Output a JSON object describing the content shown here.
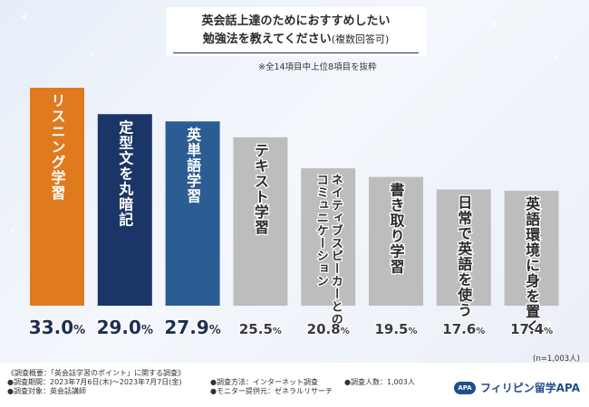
{
  "title_line1": "英会話上達のためにおすすめしたい",
  "title_line2": "勉強法を教えてください",
  "title_line2_suffix": "(複数回答可)",
  "subnote": "※全14項目中上位8項目を抜粋",
  "n_note": "(n=1,003人)",
  "colors": {
    "orange": "#e07a1f",
    "navy": "#1a3566",
    "blue": "#2b5c93",
    "gray": "#bdbdbd",
    "value_text": "#1d2f52"
  },
  "chart_data": {
    "type": "bar",
    "title": "英会話上達のためにおすすめしたい勉強法を教えてください(複数回答可)",
    "categories": [
      "リスニング学習",
      "定型文を丸暗記",
      "英単語学習",
      "テキスト学習",
      "ネイティブスピーカーとのコミュニケーション",
      "書き取り学習",
      "日常で英語を使う",
      "英語環境に身を置く"
    ],
    "bar_labels": [
      [
        "リスニング学習"
      ],
      [
        "定型文を丸暗記"
      ],
      [
        "英単語学習"
      ],
      [
        "テキスト学習"
      ],
      [
        "ネイティブスピーカーとの",
        "コミュニケーション"
      ],
      [
        "書き取り学習"
      ],
      [
        "日常で英語を使う"
      ],
      [
        "英語環境に身を置く"
      ]
    ],
    "values": [
      33.0,
      29.0,
      27.9,
      25.5,
      20.8,
      19.5,
      17.6,
      17.4
    ],
    "value_labels": [
      {
        "num": "33.0",
        "unit": "%"
      },
      {
        "num": "29.0",
        "unit": "%"
      },
      {
        "num": "27.9",
        "unit": "%"
      },
      {
        "num": "25.5",
        "unit": "%"
      },
      {
        "num": "20.8",
        "unit": "%"
      },
      {
        "num": "19.5",
        "unit": "%"
      },
      {
        "num": "17.6",
        "unit": "%"
      },
      {
        "num": "17.4",
        "unit": "%"
      }
    ],
    "bar_colors": [
      "orange",
      "navy",
      "blue",
      "gray",
      "gray",
      "gray",
      "gray",
      "gray"
    ],
    "ylim": [
      0,
      33.0
    ],
    "xlabel": "",
    "ylabel": "",
    "grid": false,
    "legend": "none"
  },
  "footer": {
    "survey_lines": [
      "《調査概要：「英会話学習のポイント」に関する調査》",
      "●調査期間：2023年7月6日(木)～2023年7月7日(金)",
      "●調査対象：英会話講師"
    ],
    "method_lines": [
      "●調査方法：インターネット調査",
      "●モニター提供元：ゼネラルリサーチ"
    ],
    "count_line": "●調査人数：1,003人",
    "logo_text": "APA",
    "brand_name": "フィリピン留学APA"
  }
}
